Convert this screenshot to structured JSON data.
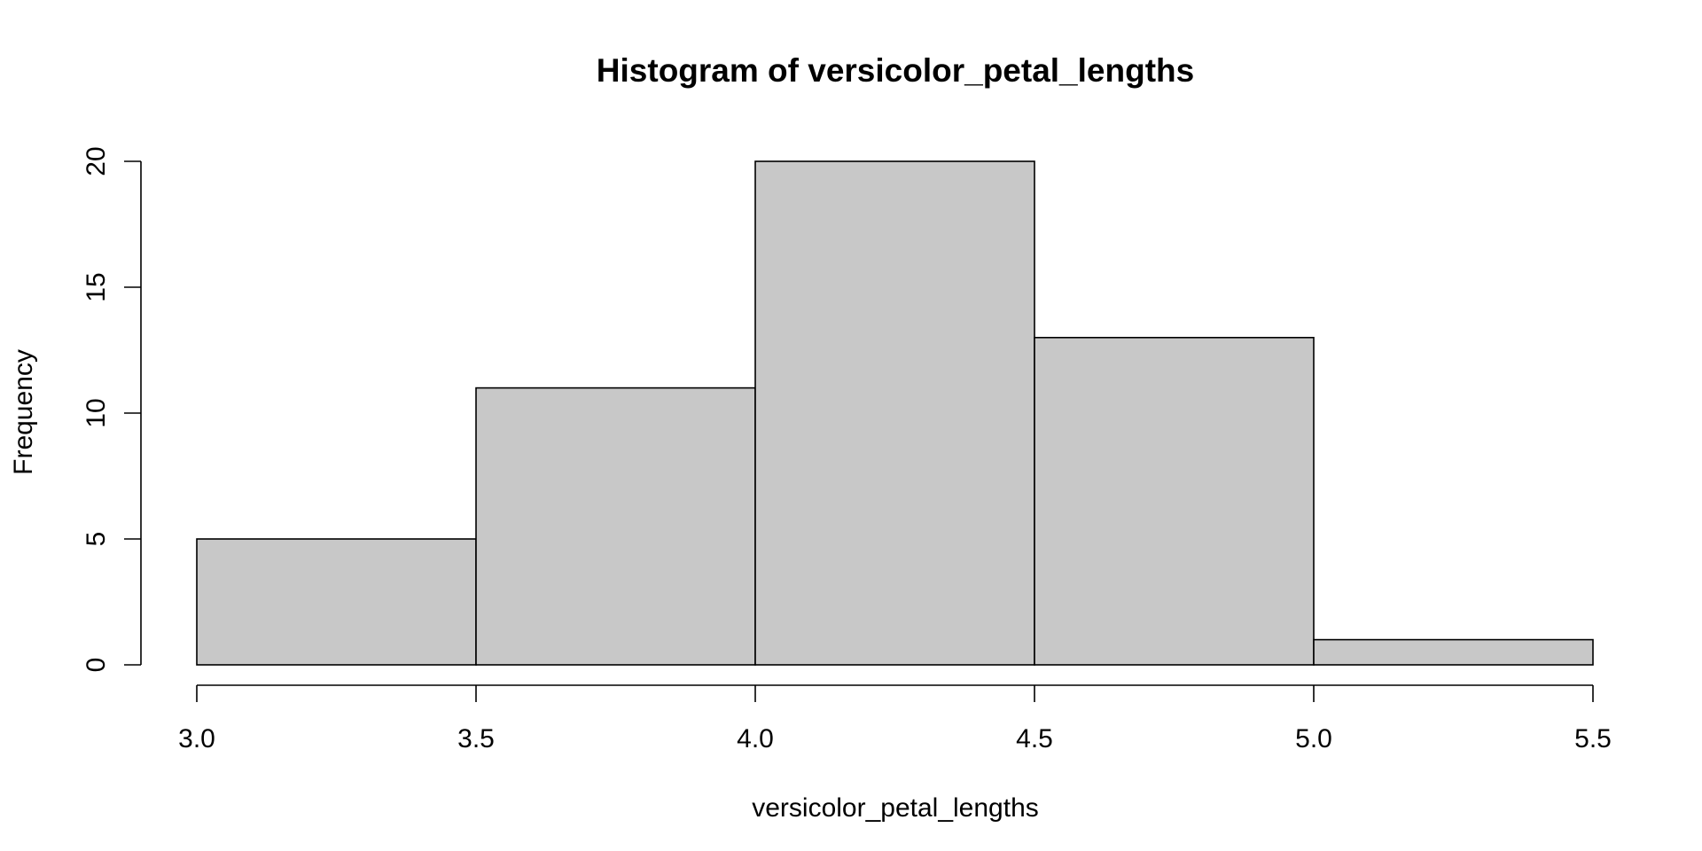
{
  "chart_data": {
    "type": "bar",
    "title": "Histogram of versicolor_petal_lengths",
    "xlabel": "versicolor_petal_lengths",
    "ylabel": "Frequency",
    "bin_edges": [
      3.0,
      3.5,
      4.0,
      4.5,
      5.0,
      5.5
    ],
    "values": [
      5,
      11,
      20,
      13,
      1
    ],
    "xlim": [
      3.0,
      5.5
    ],
    "ylim": [
      0,
      20
    ],
    "x_ticks": [
      3.0,
      3.5,
      4.0,
      4.5,
      5.0,
      5.5
    ],
    "x_tick_labels": [
      "3.0",
      "3.5",
      "4.0",
      "4.5",
      "5.0",
      "5.5"
    ],
    "y_ticks": [
      0,
      5,
      10,
      15,
      20
    ],
    "y_tick_labels": [
      "0",
      "5",
      "10",
      "15",
      "20"
    ],
    "grid": false,
    "bar_fill": "#c8c8c8",
    "bar_stroke": "#000000"
  }
}
